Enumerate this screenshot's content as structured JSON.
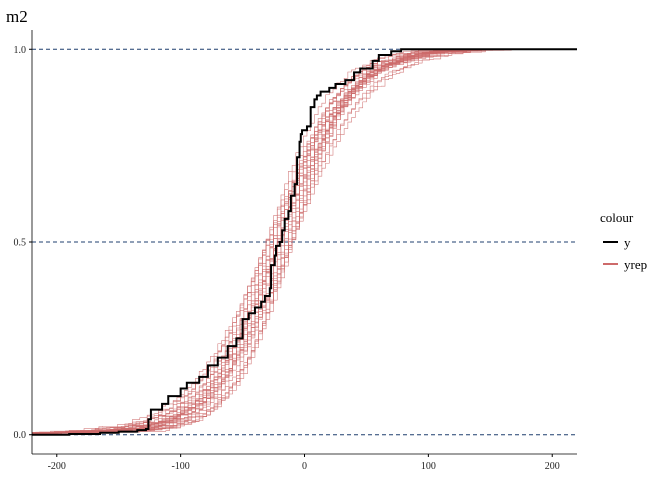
{
  "chart_data": {
    "type": "line",
    "title": "m2",
    "xlabel": "",
    "ylabel": "",
    "xlim": [
      -220,
      220
    ],
    "ylim": [
      -0.05,
      1.05
    ],
    "x_ticks": [
      -200,
      -100,
      0,
      100,
      200
    ],
    "x_tick_labels": [
      "-200",
      "-100",
      "0",
      "100",
      "200"
    ],
    "y_ticks": [
      0,
      0.5,
      1
    ],
    "y_tick_labels": [
      "0.0",
      "0.5",
      "1.0"
    ],
    "reference_lines": [
      0,
      0.5,
      1
    ],
    "grid": false,
    "legend": {
      "title": "colour",
      "position": "right"
    },
    "colors": {
      "y": "#000000",
      "yrep": "#cd6a6a",
      "refline": "#1f3f6f"
    },
    "series": [
      {
        "name": "y",
        "x": [
          -220,
          -190,
          -165,
          -150,
          -135,
          -128,
          -126,
          -124,
          -115,
          -110,
          -100,
          -95,
          -85,
          -78,
          -70,
          -62,
          -55,
          -50,
          -45,
          -40,
          -35,
          -32,
          -28,
          -27,
          -24,
          -23,
          -20,
          -18,
          -16,
          -13,
          -11,
          -8,
          -6,
          -4,
          -3,
          -2,
          2,
          5,
          8,
          10,
          13,
          20,
          25,
          33,
          40,
          45,
          55,
          60,
          70,
          78,
          220
        ],
        "y": [
          0.0,
          0.002,
          0.005,
          0.008,
          0.012,
          0.015,
          0.04,
          0.065,
          0.08,
          0.1,
          0.12,
          0.135,
          0.15,
          0.18,
          0.2,
          0.23,
          0.25,
          0.3,
          0.315,
          0.33,
          0.345,
          0.36,
          0.38,
          0.44,
          0.465,
          0.49,
          0.5,
          0.53,
          0.56,
          0.58,
          0.62,
          0.65,
          0.72,
          0.76,
          0.78,
          0.79,
          0.8,
          0.85,
          0.87,
          0.88,
          0.89,
          0.9,
          0.91,
          0.92,
          0.94,
          0.95,
          0.97,
          0.985,
          0.995,
          1.0,
          1.0
        ]
      },
      {
        "name": "yrep",
        "mu": -21,
        "s": 28,
        "reps": 30
      }
    ]
  }
}
